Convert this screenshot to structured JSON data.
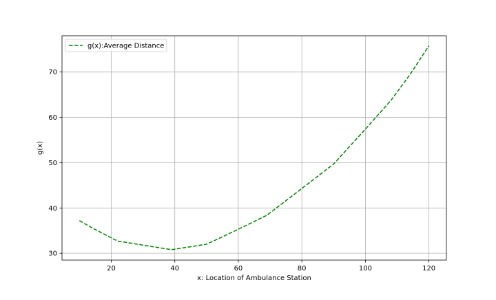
{
  "chart_data": {
    "type": "line",
    "title": "",
    "xlabel": "x: Location of Ambulance Station",
    "ylabel": "g(x)",
    "xlim": [
      4.5,
      125.5
    ],
    "ylim": [
      28.5,
      78.0
    ],
    "xticks": [
      20,
      40,
      60,
      80,
      100,
      120
    ],
    "yticks": [
      30,
      40,
      50,
      60,
      70
    ],
    "grid": true,
    "legend": {
      "location": "upper-left"
    },
    "series": [
      {
        "name": "g(x):Average Distance",
        "color": "#008000",
        "style": "dashed",
        "x": [
          10,
          14,
          22,
          30,
          39,
          50,
          60,
          69,
          80,
          90,
          100,
          108,
          114,
          120
        ],
        "y": [
          37.2,
          35.6,
          32.7,
          31.8,
          30.8,
          32.0,
          35.3,
          38.4,
          44.3,
          49.7,
          57.4,
          63.7,
          69.4,
          75.8
        ]
      }
    ]
  }
}
